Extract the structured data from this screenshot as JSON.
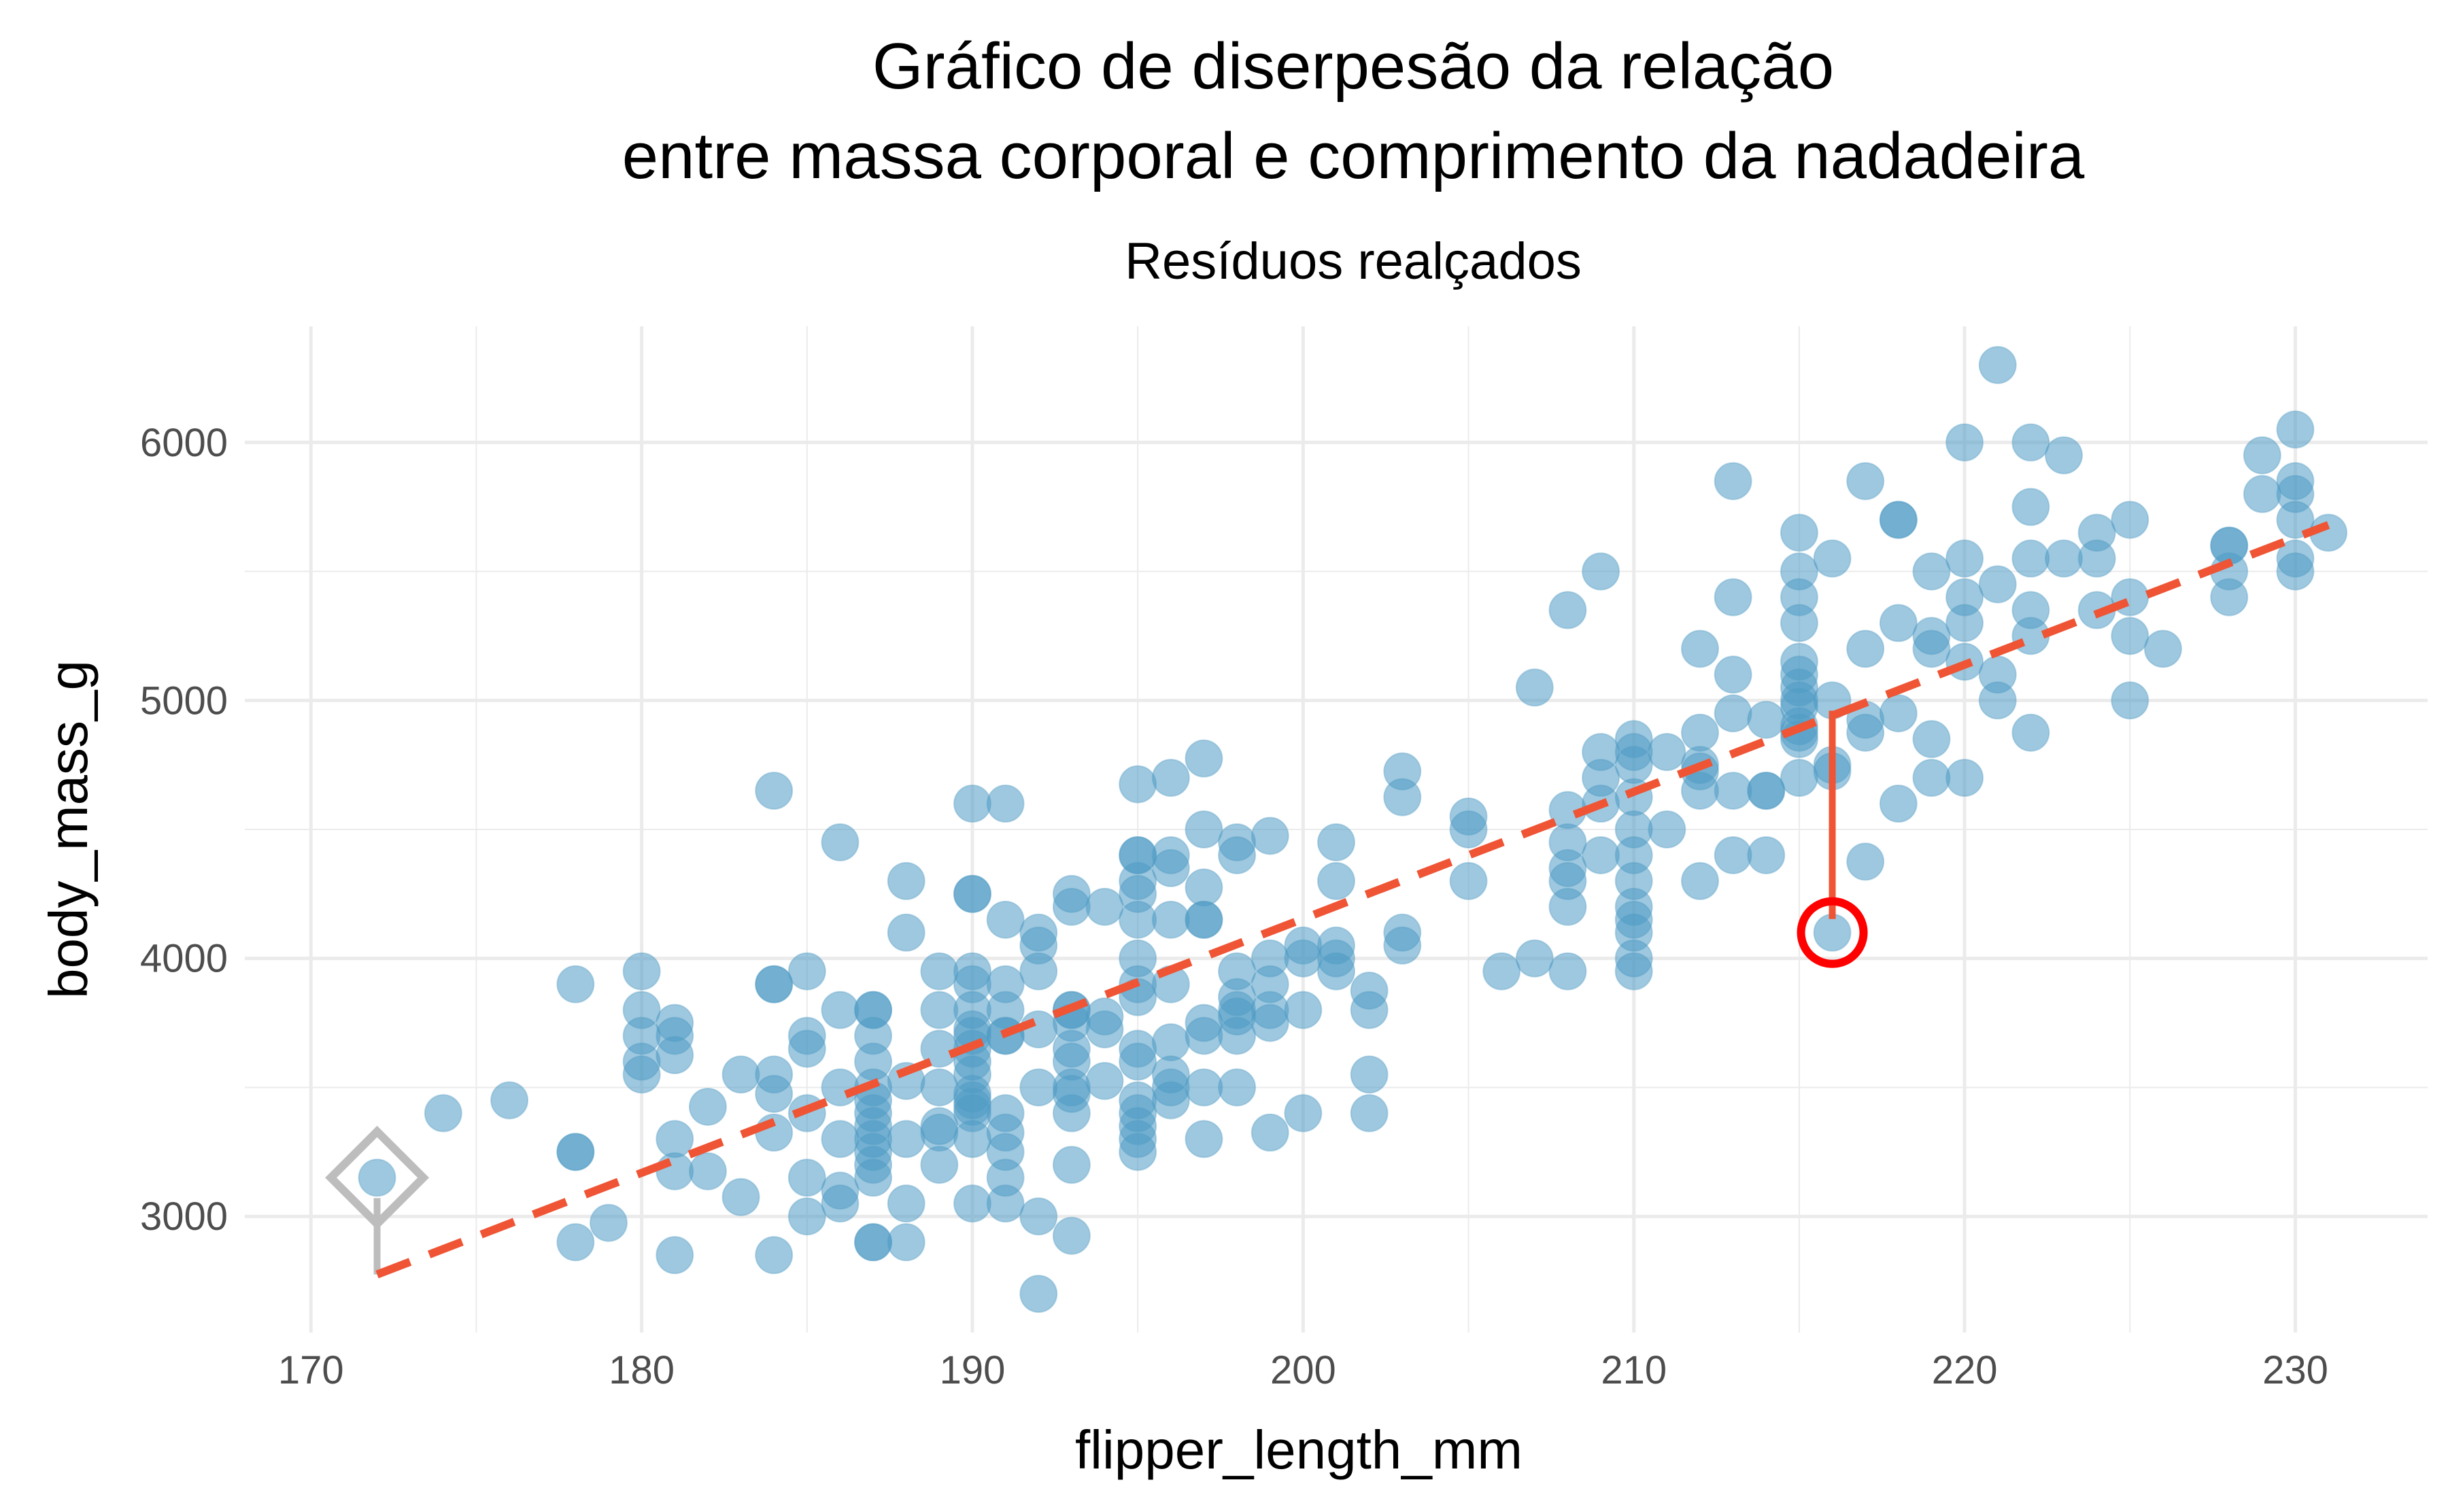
{
  "chart_data": {
    "type": "scatter",
    "title_lines": [
      "Gráfico de diserpesão da relação",
      "entre massa corporal e comprimento da nadadeira"
    ],
    "subtitle": "Resíduos realçados",
    "xlabel": "flipper_length_mm",
    "ylabel": "body_mass_g",
    "xlim": [
      168,
      234
    ],
    "ylim": [
      2550,
      6450
    ],
    "x_ticks": [
      "170",
      "180",
      "190",
      "200",
      "210",
      "220",
      "230"
    ],
    "y_ticks": [
      "3000",
      "4000",
      "5000",
      "6000"
    ],
    "grid": true,
    "colors": {
      "points": "#4f9bc4",
      "fit_line": "#ef5435",
      "highlight": "#ff0000",
      "highlight_alt": "#bdbdbd",
      "grid": "#ebebeb"
    },
    "fit_line": {
      "x": [
        172,
        231
      ],
      "y": [
        2775,
        5680
      ]
    },
    "highlights": [
      {
        "shape": "circle",
        "x": 216,
        "y": 4100,
        "fitted": 4960,
        "color": "#ff0000"
      },
      {
        "shape": "diamond",
        "x": 172,
        "y": 3150,
        "fitted": 2775,
        "color": "#bdbdbd"
      }
    ],
    "points": [
      [
        172,
        3150
      ],
      [
        174,
        3400
      ],
      [
        176,
        3450
      ],
      [
        178,
        3900
      ],
      [
        178,
        3250
      ],
      [
        178,
        3250
      ],
      [
        178,
        2900
      ],
      [
        179,
        2975
      ],
      [
        180,
        3950
      ],
      [
        180,
        3800
      ],
      [
        180,
        3700
      ],
      [
        180,
        3600
      ],
      [
        180,
        3550
      ],
      [
        181,
        3750
      ],
      [
        181,
        3700
      ],
      [
        181,
        3625
      ],
      [
        181,
        3300
      ],
      [
        181,
        3175
      ],
      [
        181,
        2850
      ],
      [
        182,
        3425
      ],
      [
        182,
        3175
      ],
      [
        183,
        3550
      ],
      [
        183,
        3075
      ],
      [
        184,
        4650
      ],
      [
        184,
        3900
      ],
      [
        184,
        3900
      ],
      [
        184,
        3550
      ],
      [
        184,
        3475
      ],
      [
        184,
        3325
      ],
      [
        184,
        2850
      ],
      [
        185,
        3950
      ],
      [
        185,
        3700
      ],
      [
        185,
        3650
      ],
      [
        185,
        3400
      ],
      [
        185,
        3150
      ],
      [
        185,
        3000
      ],
      [
        186,
        4450
      ],
      [
        186,
        3800
      ],
      [
        186,
        3500
      ],
      [
        186,
        3300
      ],
      [
        186,
        3100
      ],
      [
        186,
        3050
      ],
      [
        187,
        3800
      ],
      [
        187,
        3800
      ],
      [
        187,
        3700
      ],
      [
        187,
        3600
      ],
      [
        187,
        3500
      ],
      [
        187,
        3450
      ],
      [
        187,
        3400
      ],
      [
        187,
        3350
      ],
      [
        187,
        3300
      ],
      [
        187,
        3250
      ],
      [
        187,
        3200
      ],
      [
        187,
        3150
      ],
      [
        187,
        2900
      ],
      [
        187,
        2900
      ],
      [
        188,
        4300
      ],
      [
        188,
        4100
      ],
      [
        188,
        3525
      ],
      [
        188,
        3300
      ],
      [
        188,
        3050
      ],
      [
        188,
        2900
      ],
      [
        189,
        3950
      ],
      [
        189,
        3800
      ],
      [
        189,
        3650
      ],
      [
        189,
        3500
      ],
      [
        189,
        3350
      ],
      [
        189,
        3325
      ],
      [
        189,
        3200
      ],
      [
        190,
        4600
      ],
      [
        190,
        4250
      ],
      [
        190,
        4250
      ],
      [
        190,
        3950
      ],
      [
        190,
        3900
      ],
      [
        190,
        3800
      ],
      [
        190,
        3725
      ],
      [
        190,
        3700
      ],
      [
        190,
        3650
      ],
      [
        190,
        3600
      ],
      [
        190,
        3550
      ],
      [
        190,
        3475
      ],
      [
        190,
        3450
      ],
      [
        190,
        3425
      ],
      [
        190,
        3400
      ],
      [
        190,
        3300
      ],
      [
        190,
        3050
      ],
      [
        191,
        4600
      ],
      [
        191,
        4150
      ],
      [
        191,
        3900
      ],
      [
        191,
        3800
      ],
      [
        191,
        3700
      ],
      [
        191,
        3700
      ],
      [
        191,
        3400
      ],
      [
        191,
        3325
      ],
      [
        191,
        3250
      ],
      [
        191,
        3150
      ],
      [
        191,
        3050
      ],
      [
        192,
        4100
      ],
      [
        192,
        4050
      ],
      [
        192,
        3950
      ],
      [
        192,
        3725
      ],
      [
        192,
        3500
      ],
      [
        192,
        3000
      ],
      [
        192,
        2700
      ],
      [
        193,
        4250
      ],
      [
        193,
        4200
      ],
      [
        193,
        3800
      ],
      [
        193,
        3800
      ],
      [
        193,
        3750
      ],
      [
        193,
        3650
      ],
      [
        193,
        3600
      ],
      [
        193,
        3500
      ],
      [
        193,
        3475
      ],
      [
        193,
        3400
      ],
      [
        193,
        3200
      ],
      [
        193,
        2925
      ],
      [
        194,
        4200
      ],
      [
        194,
        3775
      ],
      [
        194,
        3725
      ],
      [
        194,
        3525
      ],
      [
        195,
        4675
      ],
      [
        195,
        4400
      ],
      [
        195,
        4400
      ],
      [
        195,
        4300
      ],
      [
        195,
        4250
      ],
      [
        195,
        4150
      ],
      [
        195,
        4000
      ],
      [
        195,
        3900
      ],
      [
        195,
        3850
      ],
      [
        195,
        3650
      ],
      [
        195,
        3600
      ],
      [
        195,
        3450
      ],
      [
        195,
        3400
      ],
      [
        195,
        3350
      ],
      [
        195,
        3300
      ],
      [
        195,
        3250
      ],
      [
        196,
        4700
      ],
      [
        196,
        4400
      ],
      [
        196,
        4350
      ],
      [
        196,
        4150
      ],
      [
        196,
        3900
      ],
      [
        196,
        3675
      ],
      [
        196,
        3550
      ],
      [
        196,
        3500
      ],
      [
        196,
        3450
      ],
      [
        197,
        4775
      ],
      [
        197,
        4500
      ],
      [
        197,
        4275
      ],
      [
        197,
        4150
      ],
      [
        197,
        4150
      ],
      [
        197,
        3750
      ],
      [
        197,
        3700
      ],
      [
        197,
        3500
      ],
      [
        197,
        3300
      ],
      [
        198,
        4450
      ],
      [
        198,
        4400
      ],
      [
        198,
        3950
      ],
      [
        198,
        3850
      ],
      [
        198,
        3800
      ],
      [
        198,
        3775
      ],
      [
        198,
        3700
      ],
      [
        198,
        3500
      ],
      [
        199,
        4475
      ],
      [
        199,
        4000
      ],
      [
        199,
        3900
      ],
      [
        199,
        3800
      ],
      [
        199,
        3750
      ],
      [
        199,
        3325
      ],
      [
        200,
        4050
      ],
      [
        200,
        4000
      ],
      [
        200,
        3800
      ],
      [
        200,
        3400
      ],
      [
        201,
        4450
      ],
      [
        201,
        4300
      ],
      [
        201,
        4050
      ],
      [
        201,
        4000
      ],
      [
        201,
        3950
      ],
      [
        202,
        3875
      ],
      [
        202,
        3800
      ],
      [
        202,
        3550
      ],
      [
        202,
        3400
      ],
      [
        203,
        4725
      ],
      [
        203,
        4625
      ],
      [
        203,
        4100
      ],
      [
        203,
        4050
      ],
      [
        205,
        4550
      ],
      [
        205,
        4500
      ],
      [
        205,
        4300
      ],
      [
        206,
        3950
      ],
      [
        207,
        5050
      ],
      [
        207,
        4000
      ],
      [
        208,
        5350
      ],
      [
        208,
        4575
      ],
      [
        208,
        4450
      ],
      [
        208,
        4350
      ],
      [
        208,
        4300
      ],
      [
        208,
        4200
      ],
      [
        208,
        3950
      ],
      [
        209,
        5500
      ],
      [
        209,
        4800
      ],
      [
        209,
        4700
      ],
      [
        209,
        4600
      ],
      [
        209,
        4400
      ],
      [
        210,
        4850
      ],
      [
        210,
        4800
      ],
      [
        210,
        4750
      ],
      [
        210,
        4625
      ],
      [
        210,
        4500
      ],
      [
        210,
        4400
      ],
      [
        210,
        4300
      ],
      [
        210,
        4200
      ],
      [
        210,
        4150
      ],
      [
        210,
        4100
      ],
      [
        210,
        4000
      ],
      [
        210,
        3950
      ],
      [
        211,
        4800
      ],
      [
        211,
        4500
      ],
      [
        212,
        5200
      ],
      [
        212,
        4875
      ],
      [
        212,
        4750
      ],
      [
        212,
        4725
      ],
      [
        212,
        4650
      ],
      [
        212,
        4300
      ],
      [
        213,
        5850
      ],
      [
        213,
        5400
      ],
      [
        213,
        5100
      ],
      [
        213,
        4950
      ],
      [
        213,
        4650
      ],
      [
        213,
        4400
      ],
      [
        214,
        4925
      ],
      [
        214,
        4650
      ],
      [
        214,
        4650
      ],
      [
        214,
        4400
      ],
      [
        215,
        5650
      ],
      [
        215,
        5500
      ],
      [
        215,
        5400
      ],
      [
        215,
        5300
      ],
      [
        215,
        5150
      ],
      [
        215,
        5100
      ],
      [
        215,
        5050
      ],
      [
        215,
        5000
      ],
      [
        215,
        4975
      ],
      [
        215,
        4900
      ],
      [
        215,
        4875
      ],
      [
        215,
        4850
      ],
      [
        215,
        4700
      ],
      [
        216,
        5550
      ],
      [
        216,
        5000
      ],
      [
        216,
        4750
      ],
      [
        216,
        4725
      ],
      [
        216,
        4100
      ],
      [
        217,
        5850
      ],
      [
        217,
        5200
      ],
      [
        217,
        4925
      ],
      [
        217,
        4875
      ],
      [
        217,
        4375
      ],
      [
        218,
        5700
      ],
      [
        218,
        5700
      ],
      [
        218,
        5300
      ],
      [
        218,
        4950
      ],
      [
        218,
        4600
      ],
      [
        219,
        5500
      ],
      [
        219,
        5250
      ],
      [
        219,
        5200
      ],
      [
        219,
        4850
      ],
      [
        219,
        4700
      ],
      [
        220,
        6000
      ],
      [
        220,
        5550
      ],
      [
        220,
        5400
      ],
      [
        220,
        5300
      ],
      [
        220,
        5150
      ],
      [
        220,
        4700
      ],
      [
        221,
        6300
      ],
      [
        221,
        5450
      ],
      [
        221,
        5100
      ],
      [
        221,
        5000
      ],
      [
        222,
        6000
      ],
      [
        222,
        5750
      ],
      [
        222,
        5550
      ],
      [
        222,
        5350
      ],
      [
        222,
        5250
      ],
      [
        222,
        4875
      ],
      [
        223,
        5950
      ],
      [
        223,
        5550
      ],
      [
        224,
        5650
      ],
      [
        224,
        5550
      ],
      [
        224,
        5350
      ],
      [
        225,
        5700
      ],
      [
        225,
        5400
      ],
      [
        225,
        5250
      ],
      [
        225,
        5000
      ],
      [
        226,
        5200
      ],
      [
        228,
        5600
      ],
      [
        228,
        5600
      ],
      [
        228,
        5500
      ],
      [
        228,
        5400
      ],
      [
        229,
        5950
      ],
      [
        229,
        5800
      ],
      [
        230,
        6050
      ],
      [
        230,
        5850
      ],
      [
        230,
        5800
      ],
      [
        230,
        5700
      ],
      [
        230,
        5550
      ],
      [
        230,
        5500
      ],
      [
        231,
        5650
      ]
    ]
  }
}
